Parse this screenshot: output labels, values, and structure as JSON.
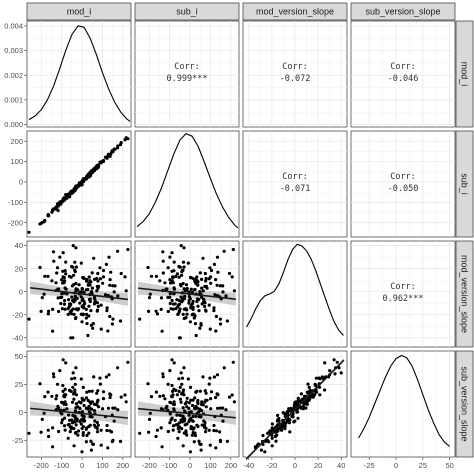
{
  "chart_data": {
    "type": "scatter-matrix",
    "variables": [
      "mod_i",
      "sub_i",
      "mod_version_slope",
      "sub_version_slope"
    ],
    "grid": true,
    "x_ticks": [
      [
        -200,
        -100,
        0,
        100,
        200
      ],
      [
        -200,
        -100,
        0,
        100,
        200
      ],
      [
        -40,
        -20,
        0,
        20,
        40
      ],
      [
        -25,
        0,
        25,
        50
      ]
    ],
    "x_tick_labels": [
      [
        "-200",
        "-100",
        "0",
        "100",
        "200"
      ],
      [
        "-200",
        "-100",
        "0",
        "100",
        "200"
      ],
      [
        "-40",
        "-20",
        "0",
        "20",
        "40"
      ],
      [
        "-25",
        "0",
        "25",
        "50"
      ]
    ],
    "x_ranges": [
      [
        -270,
        240
      ],
      [
        -270,
        240
      ],
      [
        -45,
        45
      ],
      [
        -42,
        55
      ]
    ],
    "y_ticks": [
      [
        0.0,
        0.001,
        0.002,
        0.003,
        0.004
      ],
      [
        -200,
        -100,
        0,
        100,
        200
      ],
      [
        -40,
        -20,
        0,
        20,
        40
      ],
      [
        -25,
        0,
        25,
        50
      ]
    ],
    "y_tick_labels": [
      [
        "0.000",
        "0.001",
        "0.002",
        "0.003",
        "0.004"
      ],
      [
        "-200",
        "-100",
        "0",
        "100",
        "200"
      ],
      [
        "-40",
        "-20",
        "0",
        "20",
        "40"
      ],
      [
        "-25",
        "0",
        "25",
        "50"
      ]
    ],
    "y_ranges": [
      [
        -0.0001,
        0.0042
      ],
      [
        -270,
        250
      ],
      [
        -48,
        44
      ],
      [
        -40,
        55
      ]
    ],
    "density_ranges": [
      [
        0,
        0.0041
      ],
      [
        0,
        0.0041
      ],
      [
        0,
        0.032
      ],
      [
        0,
        0.028
      ]
    ],
    "correlations": [
      {
        "row": 0,
        "col": 1,
        "label": "Corr:",
        "value": "0.999***"
      },
      {
        "row": 0,
        "col": 2,
        "label": "Corr:",
        "value": "-0.072"
      },
      {
        "row": 0,
        "col": 3,
        "label": "Corr:",
        "value": "-0.046"
      },
      {
        "row": 1,
        "col": 2,
        "label": "Corr:",
        "value": "-0.071"
      },
      {
        "row": 1,
        "col": 3,
        "label": "Corr:",
        "value": "-0.050"
      },
      {
        "row": 2,
        "col": 3,
        "label": "Corr:",
        "value": "0.962***"
      }
    ],
    "densities": [
      {
        "x": [
          -260,
          -230,
          -200,
          -170,
          -140,
          -110,
          -80,
          -50,
          -20,
          10,
          40,
          70,
          100,
          130,
          160,
          190,
          220,
          235
        ],
        "y": [
          0.0002,
          0.00035,
          0.0006,
          0.001,
          0.00155,
          0.00225,
          0.003,
          0.00365,
          0.004,
          0.00395,
          0.0035,
          0.00285,
          0.0021,
          0.00145,
          0.0009,
          0.0005,
          0.00022,
          0.00013
        ]
      },
      {
        "x": [
          -260,
          -230,
          -200,
          -170,
          -140,
          -110,
          -80,
          -50,
          -20,
          10,
          40,
          70,
          100,
          130,
          160,
          190,
          220,
          235
        ],
        "y": [
          0.0004,
          0.0006,
          0.0009,
          0.00135,
          0.0019,
          0.00255,
          0.0032,
          0.00375,
          0.004,
          0.0039,
          0.0035,
          0.0029,
          0.00225,
          0.00165,
          0.00115,
          0.00075,
          0.00045,
          0.00035
        ]
      },
      {
        "x": [
          -42,
          -38,
          -34,
          -30,
          -26,
          -22,
          -18,
          -14,
          -10,
          -6,
          -2,
          2,
          6,
          10,
          14,
          18,
          22,
          26,
          30,
          34,
          38,
          42
        ],
        "y": [
          0.006,
          0.0085,
          0.0115,
          0.014,
          0.0155,
          0.016,
          0.0168,
          0.019,
          0.0225,
          0.0265,
          0.0295,
          0.031,
          0.0305,
          0.029,
          0.0265,
          0.023,
          0.019,
          0.015,
          0.011,
          0.0075,
          0.005,
          0.0035
        ]
      },
      {
        "x": [
          -35,
          -30,
          -25,
          -20,
          -15,
          -10,
          -5,
          0,
          5,
          10,
          15,
          20,
          25,
          30,
          35,
          40,
          45,
          50
        ],
        "y": [
          0.005,
          0.0075,
          0.0105,
          0.014,
          0.0175,
          0.021,
          0.024,
          0.026,
          0.0268,
          0.0262,
          0.024,
          0.0205,
          0.0165,
          0.0125,
          0.009,
          0.006,
          0.004,
          0.0028
        ]
      }
    ],
    "fits": {
      "2-0": {
        "slope": -0.021,
        "intercept": -2.0,
        "band": 3.5
      },
      "2-1": {
        "slope": -0.02,
        "intercept": -2.0,
        "band": 3.5
      },
      "3-0": {
        "slope": -0.018,
        "intercept": -1.0,
        "band": 4.0
      },
      "3-1": {
        "slope": -0.017,
        "intercept": -1.0,
        "band": 4.0
      },
      "3-2": {
        "slope": 1.05,
        "intercept": 2.5,
        "band": 1.0
      }
    },
    "n_points": 200,
    "sample_seed": 7
  }
}
